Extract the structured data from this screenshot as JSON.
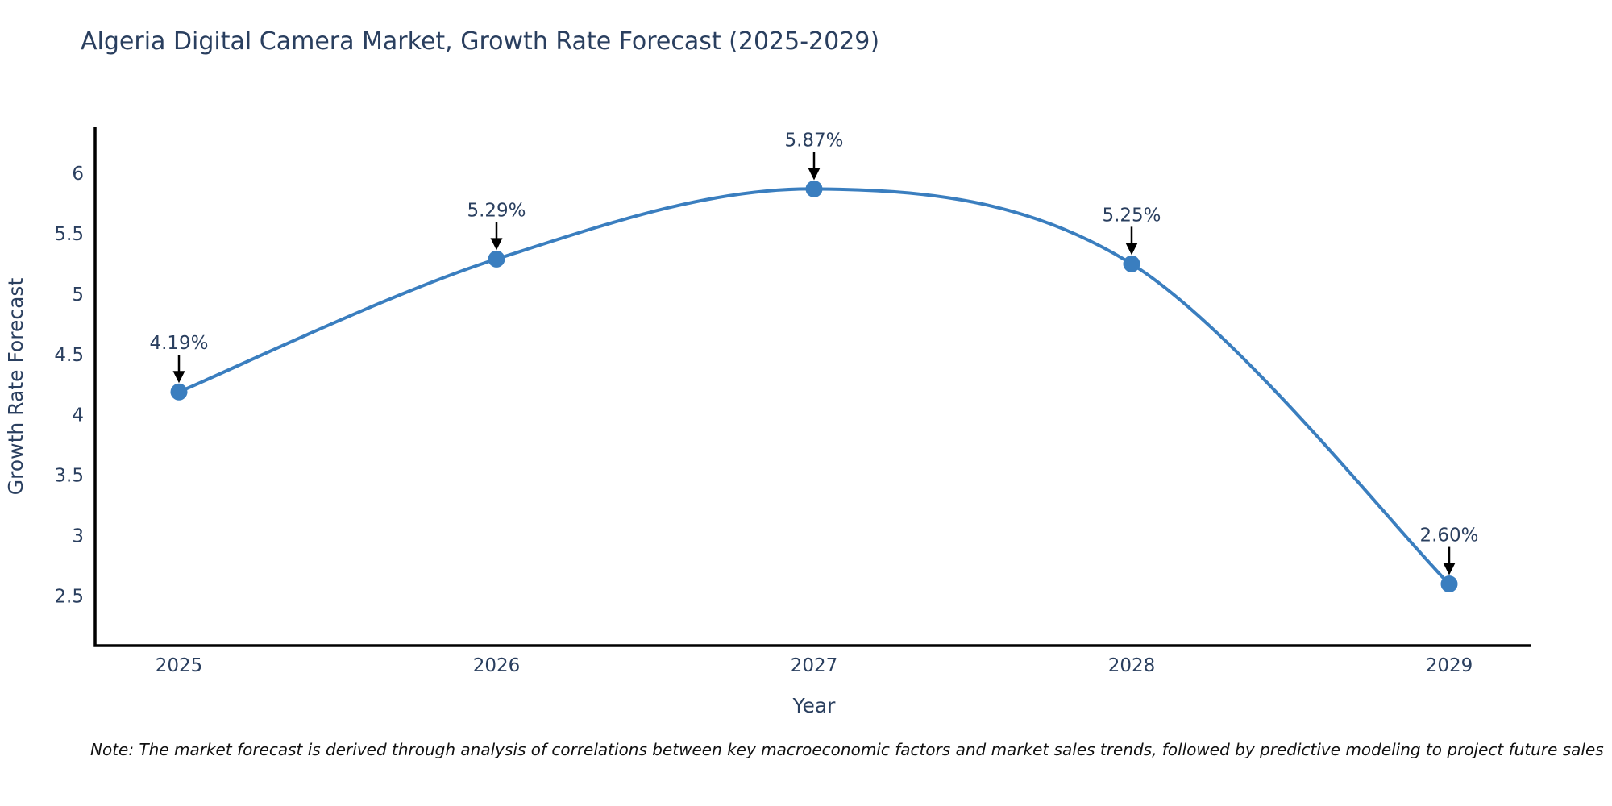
{
  "footnote": {
    "text": "Note: The market forecast is derived through analysis of correlations between key macroeconomic factors and market sales trends, followed by predictive modeling to project future sales"
  },
  "chart_data": {
    "type": "line",
    "title": "Algeria Digital Camera Market, Growth Rate Forecast (2025-2029)",
    "xlabel": "Year",
    "ylabel": "Growth Rate Forecast",
    "categories": [
      "2025",
      "2026",
      "2027",
      "2028",
      "2029"
    ],
    "x": [
      2025,
      2026,
      2027,
      2028,
      2029
    ],
    "values": [
      4.19,
      5.29,
      5.87,
      5.25,
      2.6
    ],
    "point_labels": [
      "4.19%",
      "5.29%",
      "5.87%",
      "5.25%",
      "2.60%"
    ],
    "y_ticks": [
      "6",
      "5.5",
      "5",
      "4.5",
      "4",
      "3.5",
      "3",
      "2.5"
    ],
    "y_tick_values": [
      6,
      5.5,
      5,
      4.5,
      4,
      3.5,
      3,
      2.5
    ],
    "ylim": [
      2.09,
      6.38
    ],
    "line_shape": "spline",
    "grid": false,
    "legend": "none",
    "marker": "circle",
    "annotation_style": "value-above-with-down-arrow",
    "colors": {
      "line": "#3a7ebf",
      "marker": "#3a7ebf",
      "axis": "#000000",
      "text": "#2a3f5f",
      "annotation_arrow": "#000000",
      "background": "#ffffff"
    }
  }
}
